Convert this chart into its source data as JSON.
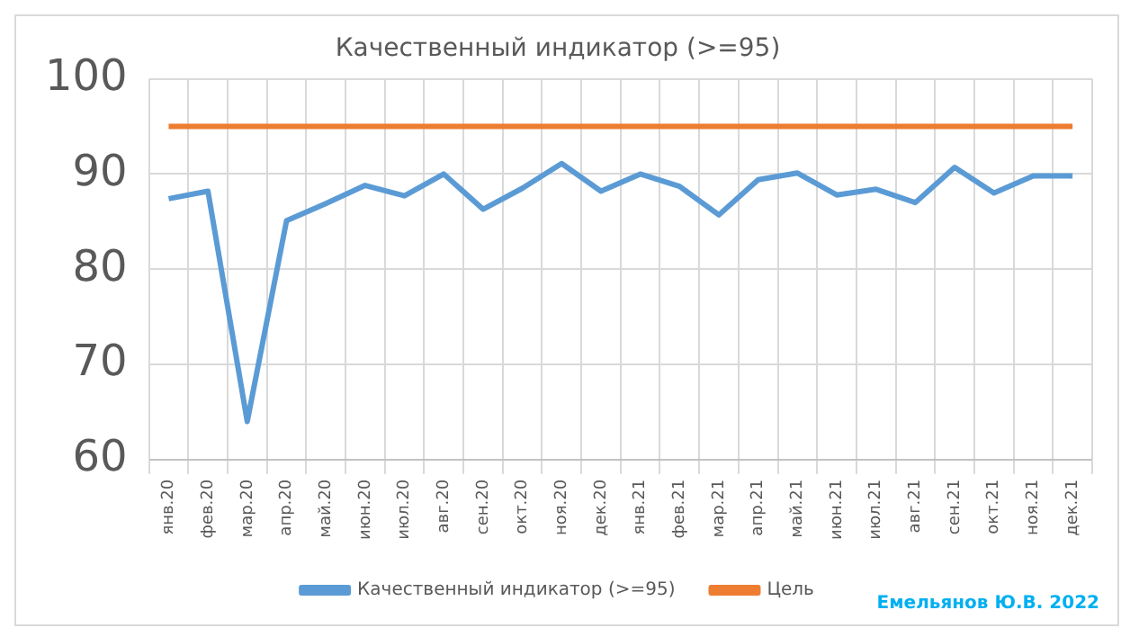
{
  "chart_data": {
    "type": "line",
    "title": "Качественный индикатор (>=95)",
    "categories": [
      "янв.20",
      "фев.20",
      "мар.20",
      "апр.20",
      "май.20",
      "июн.20",
      "июл.20",
      "авг.20",
      "сен.20",
      "окт.20",
      "ноя.20",
      "дек.20",
      "янв.21",
      "фев.21",
      "мар.21",
      "апр.21",
      "май.21",
      "июн.21",
      "июл.21",
      "авг.21",
      "сен.21",
      "окт.21",
      "ноя.21",
      "дек.21"
    ],
    "series": [
      {
        "name": "Качественный индикатор (>=95)",
        "color": "#5b9bd5",
        "values": [
          87.4,
          88.2,
          64.0,
          85.1,
          86.9,
          88.8,
          87.7,
          90.0,
          86.3,
          88.5,
          91.1,
          88.2,
          90.0,
          88.7,
          85.7,
          89.4,
          90.1,
          87.8,
          88.4,
          87.0,
          90.7,
          88.0,
          89.8,
          89.8
        ]
      },
      {
        "name": "Цель",
        "color": "#ed7d31",
        "values": [
          95,
          95,
          95,
          95,
          95,
          95,
          95,
          95,
          95,
          95,
          95,
          95,
          95,
          95,
          95,
          95,
          95,
          95,
          95,
          95,
          95,
          95,
          95,
          95
        ]
      }
    ],
    "ylim": [
      60,
      100
    ],
    "yticks": [
      60,
      70,
      80,
      90,
      100
    ],
    "grid": true,
    "legend": "bottom",
    "marker": "none",
    "line_style": "solid",
    "annotations": [
      "Емельянов Ю.В. 2022"
    ]
  }
}
